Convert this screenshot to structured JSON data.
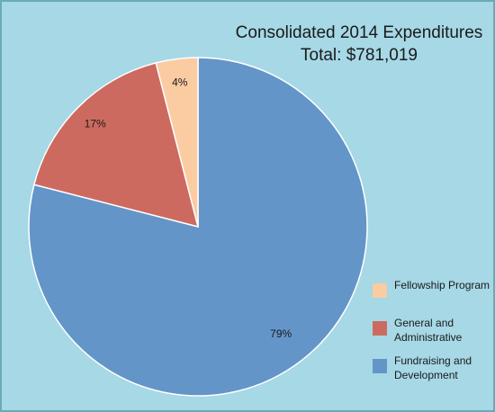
{
  "chart_data": {
    "type": "pie",
    "title": "Consolidated 2014 Expenditures",
    "subtitle": "Total: $781,019",
    "legend_position": "bottom-right",
    "slices": [
      {
        "label": "Fundraising and Development",
        "value": 79,
        "value_label": "79%",
        "color": "#6495c9"
      },
      {
        "label": "General and Administrative",
        "value": 17,
        "value_label": "17%",
        "color": "#cd6a60"
      },
      {
        "label": "Fellowship Program",
        "value": 4,
        "value_label": "4%",
        "color": "#fbcba2"
      }
    ],
    "legend_order": [
      "Fellowship Program",
      "General and Administrative",
      "Fundraising and Development"
    ]
  }
}
